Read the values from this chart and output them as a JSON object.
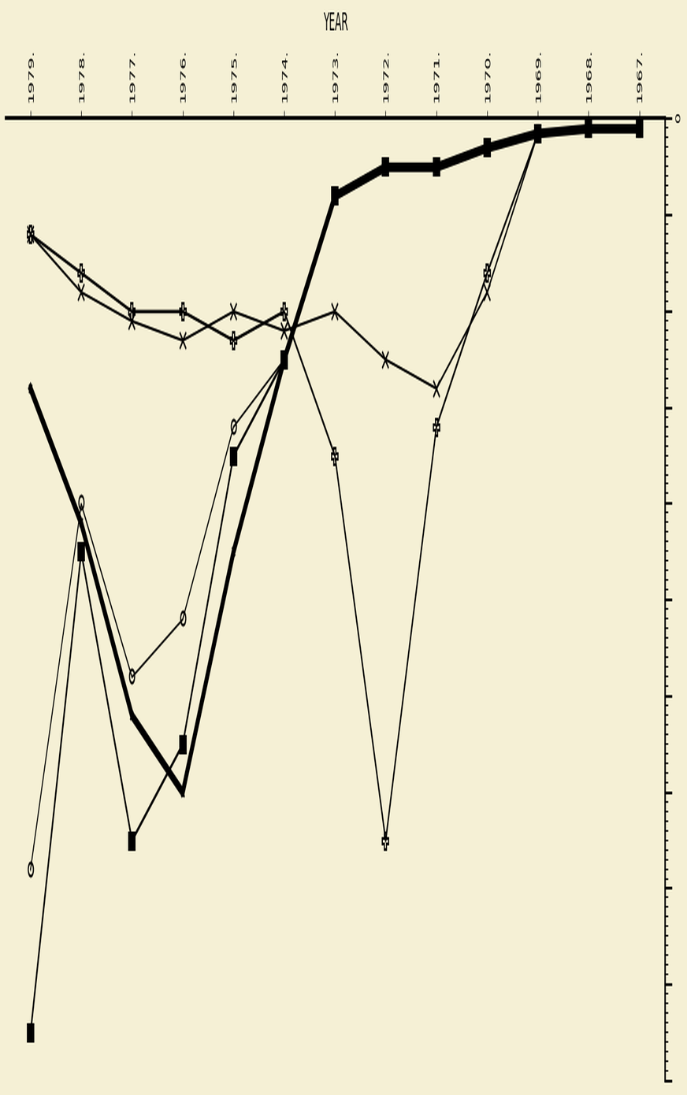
{
  "years": [
    1967,
    1968,
    1969,
    1970,
    1971,
    1972,
    1973,
    1974,
    1975,
    1976,
    1977,
    1978,
    1979
  ],
  "background_color": "#f5f0d5",
  "ylabel": "YEAR",
  "series": [
    {
      "name": "s_x",
      "marker": "x",
      "color": "#000000",
      "linewidth": 1.5,
      "markersize": 8,
      "fillstyle": "none",
      "values": [
        0.1,
        0.1,
        0.15,
        1.8,
        2.8,
        2.5,
        2.0,
        2.2,
        2.0,
        2.3,
        2.1,
        1.8,
        1.2
      ]
    },
    {
      "name": "s_plus",
      "marker": "P",
      "color": "#000000",
      "linewidth": 1.8,
      "markersize": 9,
      "fillstyle": "none",
      "values": [
        0.1,
        0.1,
        0.15,
        1.6,
        3.2,
        7.5,
        3.5,
        2.0,
        2.3,
        2.0,
        2.0,
        1.6,
        1.2
      ]
    },
    {
      "name": "s_square_filled",
      "marker": "s",
      "color": "#000000",
      "linewidth": 2.0,
      "markersize": 9,
      "fillstyle": "full",
      "values": [
        0.1,
        0.1,
        0.15,
        0.3,
        0.5,
        0.5,
        0.8,
        2.5,
        3.5,
        6.5,
        7.5,
        4.5,
        9.5
      ]
    },
    {
      "name": "s_open_circle",
      "marker": "o",
      "color": "#000000",
      "linewidth": 1.3,
      "markersize": 7,
      "fillstyle": "none",
      "values": [
        0.1,
        0.1,
        0.15,
        0.3,
        0.5,
        0.5,
        0.8,
        2.5,
        3.2,
        5.2,
        5.8,
        4.0,
        7.8
      ]
    },
    {
      "name": "s_star_thick",
      "marker": "x",
      "color": "#000000",
      "linewidth": 5.0,
      "markersize": 5,
      "fillstyle": "full",
      "values": [
        0.1,
        0.1,
        0.15,
        0.3,
        0.5,
        0.5,
        0.8,
        2.5,
        4.5,
        7.0,
        6.2,
        4.2,
        2.8
      ]
    }
  ],
  "xlim_data": [
    0,
    10
  ],
  "ylim_years": [
    1966.5,
    1979.5
  ],
  "figsize": [
    8.72,
    13.9
  ],
  "dpi": 100,
  "spine_right_x": 0.88,
  "year_label_fontsize": 10,
  "axis_label_fontsize": 13
}
